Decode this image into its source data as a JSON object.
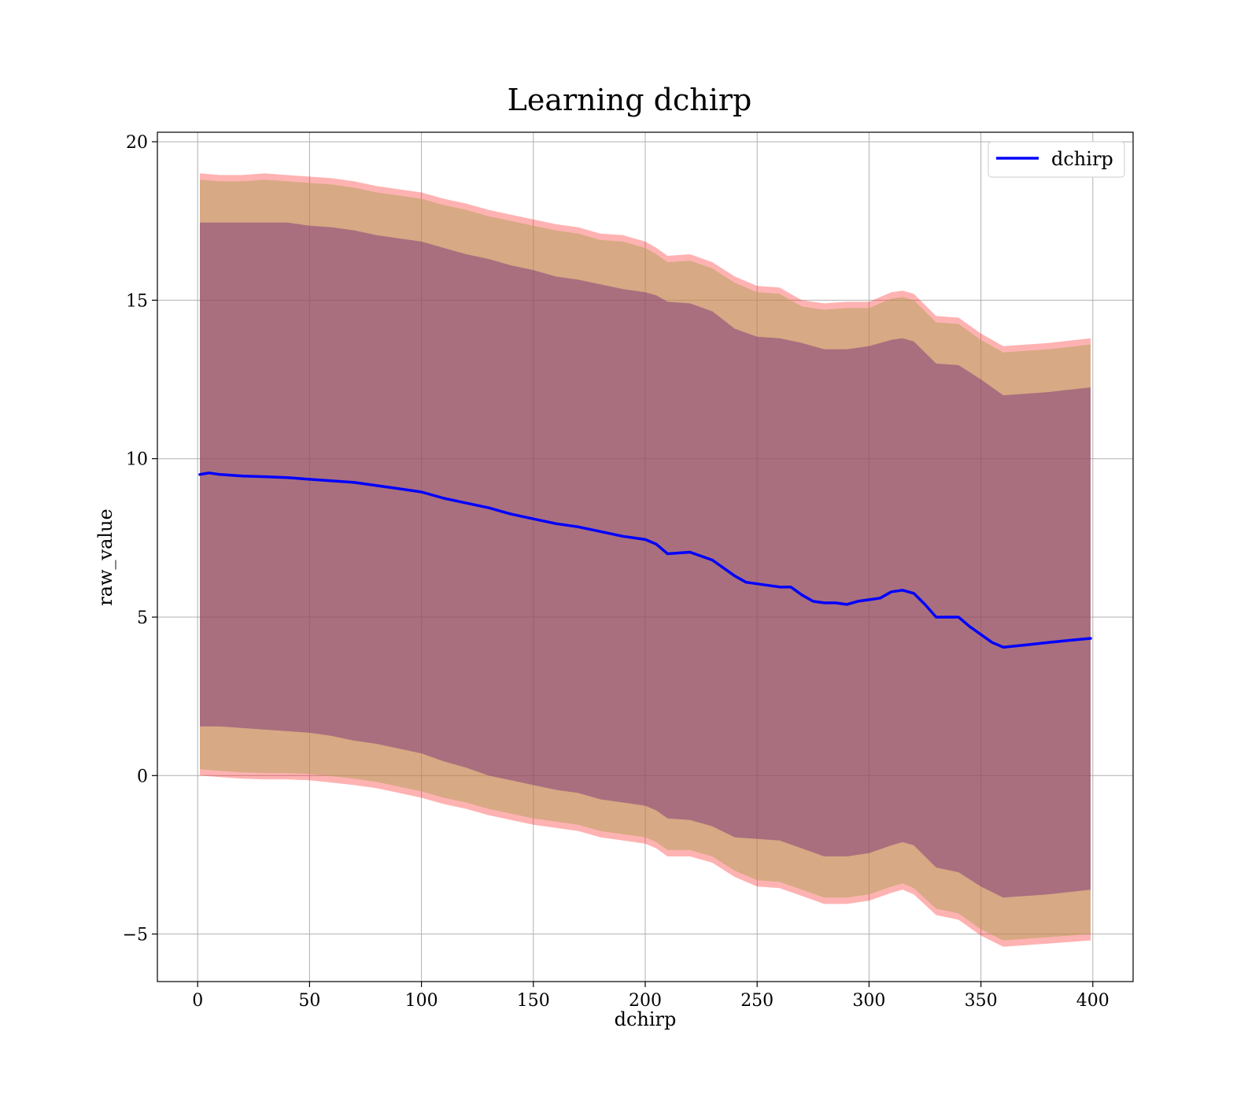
{
  "chart_data": {
    "type": "line",
    "title": "Learning dchirp",
    "xlabel": "dchirp",
    "ylabel": "raw_value",
    "xlim": [
      -18,
      418
    ],
    "ylim": [
      -6.5,
      20.3
    ],
    "xticks": [
      0,
      50,
      100,
      150,
      200,
      250,
      300,
      350,
      400
    ],
    "xtick_labels": [
      "0",
      "50",
      "100",
      "150",
      "200",
      "250",
      "300",
      "350",
      "400"
    ],
    "yticks": [
      -5,
      0,
      5,
      10,
      15,
      20
    ],
    "ytick_labels": [
      "−5",
      "0",
      "5",
      "10",
      "15",
      "20"
    ],
    "grid": true,
    "legend": {
      "placement": "top-right"
    },
    "series": [
      {
        "name": "dchirp",
        "color": "#0000ff",
        "x": [
          1,
          5,
          10,
          20,
          30,
          40,
          50,
          60,
          70,
          80,
          90,
          100,
          110,
          120,
          130,
          140,
          150,
          160,
          170,
          180,
          190,
          200,
          205,
          210,
          220,
          230,
          240,
          245,
          250,
          260,
          265,
          270,
          275,
          280,
          285,
          290,
          295,
          300,
          305,
          310,
          315,
          320,
          325,
          330,
          335,
          340,
          345,
          350,
          355,
          360,
          370,
          380,
          390,
          399
        ],
        "y": [
          9.5,
          9.55,
          9.5,
          9.45,
          9.43,
          9.4,
          9.35,
          9.3,
          9.25,
          9.15,
          9.05,
          8.95,
          8.75,
          8.6,
          8.45,
          8.25,
          8.1,
          7.95,
          7.85,
          7.7,
          7.55,
          7.45,
          7.3,
          7.0,
          7.05,
          6.8,
          6.3,
          6.1,
          6.05,
          5.95,
          5.95,
          5.7,
          5.5,
          5.45,
          5.45,
          5.4,
          5.5,
          5.55,
          5.6,
          5.8,
          5.85,
          5.75,
          5.4,
          5.0,
          5.0,
          5.0,
          4.7,
          4.45,
          4.2,
          4.05,
          4.12,
          4.2,
          4.27,
          4.33
        ]
      }
    ],
    "bands": [
      {
        "fill": "#ff0000",
        "opacity": 0.3,
        "x": [
          1,
          10,
          20,
          30,
          40,
          50,
          60,
          70,
          80,
          90,
          100,
          110,
          120,
          130,
          140,
          150,
          160,
          170,
          180,
          190,
          200,
          205,
          210,
          220,
          230,
          240,
          250,
          260,
          270,
          280,
          290,
          300,
          310,
          315,
          320,
          330,
          340,
          350,
          360,
          380,
          399
        ],
        "lower": [
          0.0,
          -0.05,
          -0.1,
          -0.12,
          -0.12,
          -0.15,
          -0.22,
          -0.3,
          -0.4,
          -0.55,
          -0.7,
          -0.9,
          -1.05,
          -1.25,
          -1.4,
          -1.55,
          -1.65,
          -1.75,
          -1.95,
          -2.05,
          -2.15,
          -2.3,
          -2.55,
          -2.55,
          -2.75,
          -3.2,
          -3.5,
          -3.55,
          -3.8,
          -4.05,
          -4.05,
          -3.95,
          -3.7,
          -3.6,
          -3.75,
          -4.4,
          -4.55,
          -5.05,
          -5.4,
          -5.3,
          -5.2
        ],
        "upper": [
          19.0,
          18.95,
          18.95,
          19.0,
          18.95,
          18.9,
          18.85,
          18.75,
          18.6,
          18.5,
          18.4,
          18.2,
          18.05,
          17.85,
          17.7,
          17.55,
          17.4,
          17.3,
          17.1,
          17.05,
          16.85,
          16.65,
          16.4,
          16.45,
          16.2,
          15.75,
          15.45,
          15.4,
          15.0,
          14.9,
          14.95,
          14.95,
          15.25,
          15.3,
          15.2,
          14.5,
          14.45,
          13.95,
          13.55,
          13.65,
          13.8
        ]
      },
      {
        "fill": "#b6a35f",
        "opacity": 0.55,
        "x": [
          1,
          10,
          20,
          30,
          40,
          50,
          60,
          70,
          80,
          90,
          100,
          110,
          120,
          130,
          140,
          150,
          160,
          170,
          180,
          190,
          200,
          205,
          210,
          220,
          230,
          240,
          250,
          260,
          270,
          280,
          290,
          300,
          310,
          315,
          320,
          330,
          340,
          350,
          360,
          380,
          399
        ],
        "lower": [
          0.2,
          0.15,
          0.1,
          0.08,
          0.08,
          0.05,
          -0.02,
          -0.1,
          -0.2,
          -0.35,
          -0.5,
          -0.7,
          -0.85,
          -1.05,
          -1.2,
          -1.35,
          -1.45,
          -1.55,
          -1.75,
          -1.85,
          -1.95,
          -2.1,
          -2.35,
          -2.35,
          -2.55,
          -3.0,
          -3.3,
          -3.35,
          -3.6,
          -3.85,
          -3.85,
          -3.75,
          -3.5,
          -3.4,
          -3.55,
          -4.2,
          -4.35,
          -4.85,
          -5.2,
          -5.1,
          -5.0
        ],
        "upper": [
          18.8,
          18.75,
          18.75,
          18.8,
          18.75,
          18.7,
          18.65,
          18.55,
          18.4,
          18.3,
          18.2,
          18.0,
          17.85,
          17.65,
          17.5,
          17.35,
          17.2,
          17.1,
          16.9,
          16.85,
          16.65,
          16.45,
          16.2,
          16.25,
          16.0,
          15.55,
          15.25,
          15.2,
          14.8,
          14.7,
          14.75,
          14.75,
          15.05,
          15.1,
          15.0,
          14.3,
          14.25,
          13.75,
          13.35,
          13.45,
          13.6
        ]
      },
      {
        "fill": "#6a1f7a",
        "opacity": 0.42,
        "x": [
          1,
          10,
          20,
          30,
          40,
          50,
          60,
          70,
          80,
          90,
          100,
          110,
          120,
          130,
          140,
          150,
          160,
          170,
          180,
          190,
          200,
          205,
          210,
          220,
          230,
          240,
          250,
          260,
          270,
          280,
          290,
          300,
          310,
          315,
          320,
          330,
          340,
          350,
          360,
          380,
          399
        ],
        "lower": [
          1.55,
          1.55,
          1.5,
          1.45,
          1.4,
          1.35,
          1.25,
          1.1,
          1.0,
          0.85,
          0.7,
          0.45,
          0.25,
          0.0,
          -0.15,
          -0.3,
          -0.45,
          -0.55,
          -0.75,
          -0.85,
          -0.95,
          -1.1,
          -1.35,
          -1.4,
          -1.6,
          -1.95,
          -2.0,
          -2.05,
          -2.3,
          -2.55,
          -2.55,
          -2.45,
          -2.2,
          -2.1,
          -2.2,
          -2.9,
          -3.05,
          -3.5,
          -3.85,
          -3.75,
          -3.6
        ],
        "upper": [
          17.45,
          17.45,
          17.45,
          17.45,
          17.45,
          17.35,
          17.3,
          17.2,
          17.05,
          16.95,
          16.85,
          16.65,
          16.45,
          16.3,
          16.1,
          15.95,
          15.75,
          15.65,
          15.5,
          15.35,
          15.25,
          15.15,
          14.95,
          14.9,
          14.65,
          14.1,
          13.85,
          13.8,
          13.65,
          13.45,
          13.45,
          13.55,
          13.75,
          13.8,
          13.7,
          13.0,
          12.95,
          12.5,
          12.0,
          12.1,
          12.25
        ]
      }
    ]
  }
}
